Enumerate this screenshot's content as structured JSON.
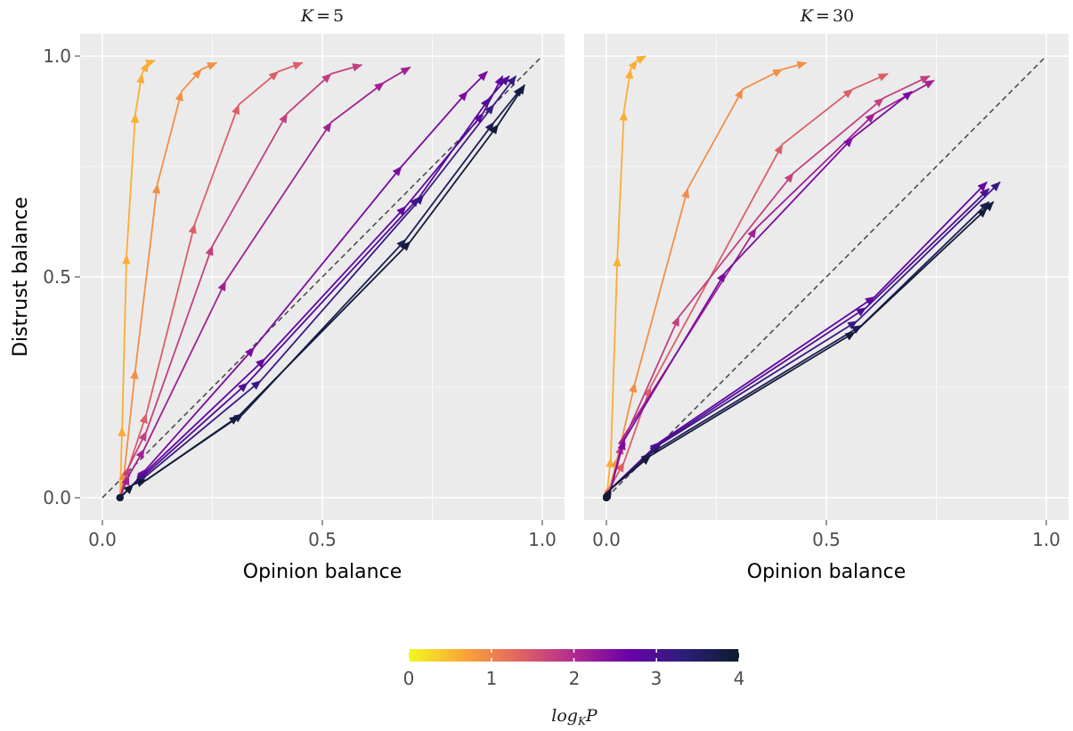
{
  "chart_data": {
    "type": "line",
    "ylabel": "Distrust balance",
    "xlim": [
      0,
      1
    ],
    "ylim": [
      0,
      1
    ],
    "xticks": [
      "0.0",
      "0.5",
      "1.0"
    ],
    "yticks": [
      "0.0",
      "0.5",
      "1.0"
    ],
    "grid": true,
    "reference_line": "y = x (dashed)",
    "colorbar": {
      "title": "log_K P",
      "title_base": "log",
      "title_sub": "K",
      "title_var": "P",
      "range": [
        0,
        4
      ],
      "ticks": [
        "0",
        "1",
        "2",
        "3",
        "4"
      ],
      "colors": [
        "#f0f921",
        "#fca636",
        "#e16462",
        "#b12a90",
        "#6a00a8",
        "#2b1f7a",
        "#0d1c2c"
      ]
    },
    "panels": [
      {
        "title": "K = 5",
        "title_K": "K",
        "title_eq": "=",
        "title_val": "5",
        "xlabel": "Opinion balance",
        "series": [
          {
            "logKP": 0.6,
            "points": [
              [
                0.04,
                0.0
              ],
              [
                0.045,
                0.16
              ],
              [
                0.055,
                0.55
              ],
              [
                0.075,
                0.87
              ],
              [
                0.09,
                0.96
              ],
              [
                0.105,
                0.985
              ],
              [
                0.12,
                0.99
              ]
            ]
          },
          {
            "logKP": 0.9,
            "points": [
              [
                0.04,
                0.0
              ],
              [
                0.05,
                0.06
              ],
              [
                0.075,
                0.29
              ],
              [
                0.125,
                0.71
              ],
              [
                0.18,
                0.92
              ],
              [
                0.225,
                0.97
              ],
              [
                0.26,
                0.985
              ]
            ]
          },
          {
            "logKP": 1.4,
            "points": [
              [
                0.04,
                0.0
              ],
              [
                0.06,
                0.07
              ],
              [
                0.1,
                0.19
              ],
              [
                0.21,
                0.62
              ],
              [
                0.31,
                0.89
              ],
              [
                0.4,
                0.965
              ],
              [
                0.455,
                0.985
              ]
            ]
          },
          {
            "logKP": 1.75,
            "points": [
              [
                0.04,
                0.0
              ],
              [
                0.06,
                0.07
              ],
              [
                0.1,
                0.15
              ],
              [
                0.25,
                0.57
              ],
              [
                0.42,
                0.87
              ],
              [
                0.52,
                0.96
              ],
              [
                0.59,
                0.98
              ]
            ]
          },
          {
            "logKP": 2.15,
            "points": [
              [
                0.04,
                0.0
              ],
              [
                0.06,
                0.05
              ],
              [
                0.095,
                0.11
              ],
              [
                0.28,
                0.49
              ],
              [
                0.52,
                0.85
              ],
              [
                0.64,
                0.94
              ],
              [
                0.7,
                0.975
              ]
            ]
          },
          {
            "logKP": 2.5,
            "points": [
              [
                0.04,
                0.0
              ],
              [
                0.07,
                0.03
              ],
              [
                0.1,
                0.065
              ],
              [
                0.345,
                0.34
              ],
              [
                0.68,
                0.75
              ],
              [
                0.83,
                0.92
              ],
              [
                0.875,
                0.965
              ]
            ]
          },
          {
            "logKP": 2.75,
            "points": [
              [
                0.04,
                0.0
              ],
              [
                0.07,
                0.03
              ],
              [
                0.1,
                0.06
              ],
              [
                0.37,
                0.315
              ],
              [
                0.69,
                0.66
              ],
              [
                0.865,
                0.87
              ],
              [
                0.91,
                0.955
              ]
            ]
          },
          {
            "logKP": 2.95,
            "points": [
              [
                0.04,
                0.0
              ],
              [
                0.07,
                0.03
              ],
              [
                0.1,
                0.055
              ],
              [
                0.33,
                0.26
              ],
              [
                0.72,
                0.68
              ],
              [
                0.88,
                0.905
              ],
              [
                0.925,
                0.955
              ]
            ]
          },
          {
            "logKP": 3.2,
            "points": [
              [
                0.04,
                0.0
              ],
              [
                0.07,
                0.03
              ],
              [
                0.1,
                0.05
              ],
              [
                0.36,
                0.265
              ],
              [
                0.73,
                0.685
              ],
              [
                0.89,
                0.89
              ],
              [
                0.94,
                0.955
              ]
            ]
          },
          {
            "logKP": 3.6,
            "points": [
              [
                0.04,
                0.0
              ],
              [
                0.07,
                0.03
              ],
              [
                0.1,
                0.04
              ],
              [
                0.32,
                0.19
              ],
              [
                0.69,
                0.585
              ],
              [
                0.89,
                0.85
              ],
              [
                0.955,
                0.93
              ]
            ]
          },
          {
            "logKP": 3.9,
            "points": [
              [
                0.04,
                0.0
              ],
              [
                0.07,
                0.03
              ],
              [
                0.1,
                0.04
              ],
              [
                0.31,
                0.185
              ],
              [
                0.7,
                0.58
              ],
              [
                0.9,
                0.845
              ],
              [
                0.96,
                0.935
              ]
            ]
          }
        ]
      },
      {
        "title": "K = 30",
        "title_K": "K",
        "title_eq": "=",
        "title_val": "30",
        "xlabel": "Opinion balance",
        "series": [
          {
            "logKP": 0.6,
            "points": [
              [
                0.0,
                0.0
              ],
              [
                0.01,
                0.09
              ],
              [
                0.025,
                0.545
              ],
              [
                0.04,
                0.875
              ],
              [
                0.055,
                0.97
              ],
              [
                0.07,
                0.99
              ],
              [
                0.09,
                1.0
              ]
            ]
          },
          {
            "logKP": 0.9,
            "points": [
              [
                0.0,
                0.0
              ],
              [
                0.01,
                0.03
              ],
              [
                0.025,
                0.09
              ],
              [
                0.065,
                0.26
              ],
              [
                0.185,
                0.7
              ],
              [
                0.31,
                0.925
              ],
              [
                0.4,
                0.97
              ],
              [
                0.455,
                0.985
              ]
            ]
          },
          {
            "logKP": 1.4,
            "points": [
              [
                0.0,
                0.0
              ],
              [
                0.01,
                0.025
              ],
              [
                0.04,
                0.08
              ],
              [
                0.1,
                0.25
              ],
              [
                0.4,
                0.8
              ],
              [
                0.56,
                0.925
              ],
              [
                0.64,
                0.96
              ]
            ]
          },
          {
            "logKP": 1.75,
            "points": [
              [
                0.0,
                0.0
              ],
              [
                0.01,
                0.02
              ],
              [
                0.035,
                0.12
              ],
              [
                0.165,
                0.41
              ],
              [
                0.425,
                0.735
              ],
              [
                0.63,
                0.905
              ],
              [
                0.735,
                0.955
              ]
            ]
          },
          {
            "logKP": 2.15,
            "points": [
              [
                0.0,
                0.0
              ],
              [
                0.01,
                0.02
              ],
              [
                0.04,
                0.14
              ],
              [
                0.34,
                0.61
              ],
              [
                0.61,
                0.87
              ],
              [
                0.745,
                0.945
              ]
            ]
          },
          {
            "logKP": 2.5,
            "points": [
              [
                0.0,
                0.0
              ],
              [
                0.01,
                0.02
              ],
              [
                0.04,
                0.13
              ],
              [
                0.27,
                0.51
              ],
              [
                0.56,
                0.815
              ],
              [
                0.695,
                0.92
              ]
            ]
          },
          {
            "logKP": 2.75,
            "points": [
              [
                0.0,
                0.0
              ],
              [
                0.01,
                0.02
              ],
              [
                0.12,
                0.125
              ],
              [
                0.61,
                0.455
              ],
              [
                0.865,
                0.715
              ]
            ]
          },
          {
            "logKP": 2.95,
            "points": [
              [
                0.0,
                0.0
              ],
              [
                0.01,
                0.02
              ],
              [
                0.125,
                0.125
              ],
              [
                0.59,
                0.43
              ],
              [
                0.87,
                0.7
              ]
            ]
          },
          {
            "logKP": 3.2,
            "points": [
              [
                0.0,
                0.0
              ],
              [
                0.01,
                0.02
              ],
              [
                0.12,
                0.12
              ],
              [
                0.57,
                0.4
              ],
              [
                0.895,
                0.715
              ]
            ]
          },
          {
            "logKP": 3.6,
            "points": [
              [
                0.0,
                0.0
              ],
              [
                0.01,
                0.02
              ],
              [
                0.1,
                0.1
              ],
              [
                0.58,
                0.39
              ],
              [
                0.87,
                0.67
              ]
            ]
          },
          {
            "logKP": 3.9,
            "points": [
              [
                0.0,
                0.0
              ],
              [
                0.01,
                0.02
              ],
              [
                0.1,
                0.095
              ],
              [
                0.565,
                0.375
              ],
              [
                0.865,
                0.655
              ],
              [
                0.88,
                0.67
              ]
            ]
          }
        ]
      }
    ]
  }
}
